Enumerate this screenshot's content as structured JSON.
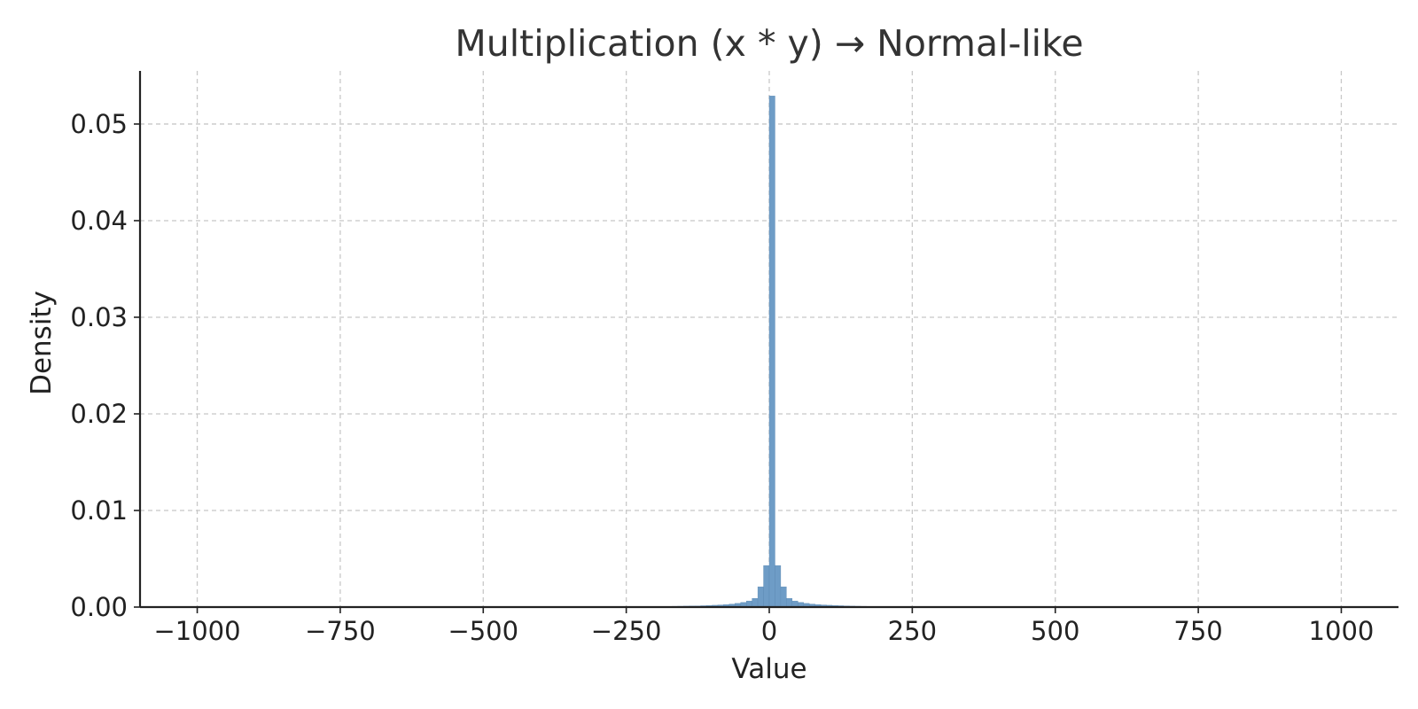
{
  "chart_data": {
    "type": "bar",
    "title": "Multiplication (x * y) → Normal-like",
    "xlabel": "Value",
    "ylabel": "Density",
    "xlim": [
      -1100,
      1100
    ],
    "ylim": [
      0,
      0.0555
    ],
    "xticks": [
      -1000,
      -750,
      -500,
      -250,
      0,
      250,
      500,
      750,
      1000
    ],
    "xtick_labels": [
      "−1000",
      "−750",
      "−500",
      "−250",
      "0",
      "250",
      "500",
      "750",
      "1000"
    ],
    "yticks": [
      0,
      0.01,
      0.02,
      0.03,
      0.04,
      0.05
    ],
    "ytick_labels": [
      "0.00",
      "0.01",
      "0.02",
      "0.03",
      "0.04",
      "0.05"
    ],
    "grid": true,
    "colors": {
      "bar": "#6e9cc6",
      "bar_edge": "#5b89b4"
    },
    "bin_width": 10,
    "bins": [
      {
        "x0": -170,
        "x1": -160,
        "density": 8e-05
      },
      {
        "x0": -160,
        "x1": -150,
        "density": 9e-05
      },
      {
        "x0": -150,
        "x1": -140,
        "density": 0.0001
      },
      {
        "x0": -140,
        "x1": -130,
        "density": 0.00011
      },
      {
        "x0": -130,
        "x1": -120,
        "density": 0.00012
      },
      {
        "x0": -120,
        "x1": -110,
        "density": 0.00014
      },
      {
        "x0": -110,
        "x1": -100,
        "density": 0.00016
      },
      {
        "x0": -100,
        "x1": -90,
        "density": 0.00019
      },
      {
        "x0": -90,
        "x1": -80,
        "density": 0.00022
      },
      {
        "x0": -80,
        "x1": -70,
        "density": 0.00026
      },
      {
        "x0": -70,
        "x1": -60,
        "density": 0.00031
      },
      {
        "x0": -60,
        "x1": -50,
        "density": 0.00038
      },
      {
        "x0": -50,
        "x1": -40,
        "density": 0.00048
      },
      {
        "x0": -40,
        "x1": -30,
        "density": 0.00063
      },
      {
        "x0": -30,
        "x1": -20,
        "density": 0.0009
      },
      {
        "x0": -20,
        "x1": -10,
        "density": 0.0021
      },
      {
        "x0": -10,
        "x1": 0,
        "density": 0.0043
      },
      {
        "x0": 0,
        "x1": 10,
        "density": 0.0529
      },
      {
        "x0": 10,
        "x1": 20,
        "density": 0.0043
      },
      {
        "x0": 20,
        "x1": 30,
        "density": 0.0021
      },
      {
        "x0": 30,
        "x1": 40,
        "density": 0.0009
      },
      {
        "x0": 40,
        "x1": 50,
        "density": 0.00063
      },
      {
        "x0": 50,
        "x1": 60,
        "density": 0.00048
      },
      {
        "x0": 60,
        "x1": 70,
        "density": 0.00038
      },
      {
        "x0": 70,
        "x1": 80,
        "density": 0.00031
      },
      {
        "x0": 80,
        "x1": 90,
        "density": 0.00026
      },
      {
        "x0": 90,
        "x1": 100,
        "density": 0.00022
      },
      {
        "x0": 100,
        "x1": 110,
        "density": 0.00019
      },
      {
        "x0": 110,
        "x1": 120,
        "density": 0.00016
      },
      {
        "x0": 120,
        "x1": 130,
        "density": 0.00014
      },
      {
        "x0": 130,
        "x1": 140,
        "density": 0.00012
      },
      {
        "x0": 140,
        "x1": 150,
        "density": 0.0001
      },
      {
        "x0": 150,
        "x1": 160,
        "density": 9e-05
      },
      {
        "x0": 160,
        "x1": 170,
        "density": 8e-05
      }
    ]
  }
}
